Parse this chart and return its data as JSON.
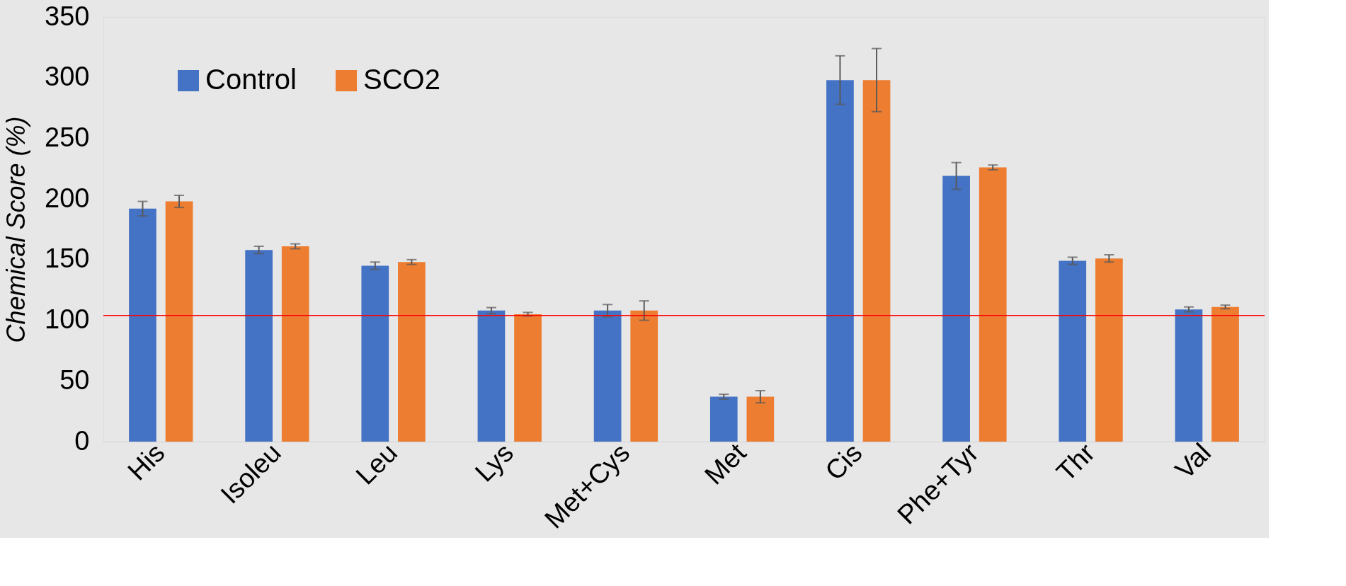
{
  "chart_data": {
    "type": "bar",
    "ylabel": "Chemical Score (%)",
    "categories": [
      "His",
      "Isoleu",
      "Leu",
      "Lys",
      "Met+Cys",
      "Met",
      "Cis",
      "Phe+Tyr",
      "Thr",
      "Val"
    ],
    "series": [
      {
        "name": "Control",
        "color": "#4472c4",
        "values": [
          192,
          158,
          145,
          108,
          108,
          37,
          298,
          219,
          149,
          109
        ],
        "errors": [
          6,
          3,
          3,
          2.5,
          5,
          2,
          20,
          11,
          3,
          2
        ]
      },
      {
        "name": "SCO2",
        "color": "#ed7d31",
        "values": [
          198,
          161,
          148,
          105,
          108,
          37,
          298,
          226,
          151,
          111
        ],
        "errors": [
          5,
          2,
          2,
          1.5,
          8,
          5,
          26,
          2,
          3,
          1.5
        ]
      }
    ],
    "ylim": [
      0,
      350
    ],
    "yticks": [
      0,
      50,
      100,
      150,
      200,
      250,
      300,
      350
    ],
    "ref_lines": [
      {
        "axis": "y",
        "value": 104,
        "color": "#ff0000"
      }
    ],
    "grid": false,
    "legend": "top left"
  }
}
